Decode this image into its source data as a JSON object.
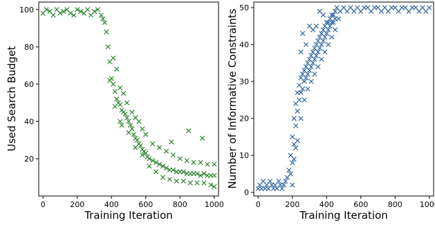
{
  "chart_data": [
    {
      "type": "scatter",
      "title": "",
      "xlabel": "Training Iteration",
      "ylabel": "Used Search Budget",
      "xlim": [
        -25,
        1025
      ],
      "ylim": [
        0,
        104
      ],
      "xticks": [
        0,
        200,
        400,
        600,
        800,
        1000
      ],
      "yticks": [
        20,
        40,
        60,
        80,
        100
      ],
      "marker": "x",
      "color": "#1a7a1a",
      "grid": false,
      "legend": "none",
      "points": [
        [
          0,
          98
        ],
        [
          20,
          100
        ],
        [
          40,
          99
        ],
        [
          60,
          97
        ],
        [
          80,
          100
        ],
        [
          100,
          98
        ],
        [
          120,
          99
        ],
        [
          140,
          100
        ],
        [
          160,
          98
        ],
        [
          180,
          97
        ],
        [
          200,
          100
        ],
        [
          220,
          99
        ],
        [
          240,
          98
        ],
        [
          260,
          100
        ],
        [
          280,
          97
        ],
        [
          300,
          99
        ],
        [
          320,
          100
        ],
        [
          340,
          97
        ],
        [
          350,
          95
        ],
        [
          360,
          93
        ],
        [
          370,
          88
        ],
        [
          380,
          80
        ],
        [
          390,
          72
        ],
        [
          400,
          63
        ],
        [
          410,
          60
        ],
        [
          420,
          56
        ],
        [
          430,
          52
        ],
        [
          440,
          50
        ],
        [
          450,
          49
        ],
        [
          460,
          46
        ],
        [
          470,
          45
        ],
        [
          480,
          44
        ],
        [
          490,
          42
        ],
        [
          500,
          40
        ],
        [
          510,
          38
        ],
        [
          520,
          36
        ],
        [
          530,
          33
        ],
        [
          540,
          31
        ],
        [
          550,
          30
        ],
        [
          560,
          28
        ],
        [
          570,
          27
        ],
        [
          580,
          25
        ],
        [
          590,
          24
        ],
        [
          600,
          23
        ],
        [
          610,
          21
        ],
        [
          620,
          20
        ],
        [
          640,
          19
        ],
        [
          660,
          18
        ],
        [
          680,
          17
        ],
        [
          700,
          16
        ],
        [
          720,
          15
        ],
        [
          740,
          14
        ],
        [
          760,
          14
        ],
        [
          780,
          13
        ],
        [
          800,
          13
        ],
        [
          820,
          13
        ],
        [
          840,
          12
        ],
        [
          860,
          12
        ],
        [
          880,
          12
        ],
        [
          900,
          12
        ],
        [
          920,
          11
        ],
        [
          940,
          12
        ],
        [
          960,
          11
        ],
        [
          980,
          11
        ],
        [
          1000,
          11
        ],
        [
          410,
          74
        ],
        [
          430,
          68
        ],
        [
          450,
          58
        ],
        [
          470,
          55
        ],
        [
          490,
          50
        ],
        [
          520,
          45
        ],
        [
          540,
          42
        ],
        [
          560,
          40
        ],
        [
          580,
          36
        ],
        [
          600,
          33
        ],
        [
          640,
          28
        ],
        [
          680,
          26
        ],
        [
          720,
          24
        ],
        [
          760,
          22
        ],
        [
          800,
          20
        ],
        [
          840,
          19
        ],
        [
          880,
          18
        ],
        [
          920,
          18
        ],
        [
          960,
          17
        ],
        [
          1000,
          17
        ],
        [
          390,
          62
        ],
        [
          420,
          48
        ],
        [
          460,
          38
        ],
        [
          500,
          34
        ],
        [
          540,
          26
        ],
        [
          580,
          22
        ],
        [
          620,
          16
        ],
        [
          660,
          13
        ],
        [
          700,
          10
        ],
        [
          740,
          9
        ],
        [
          780,
          8
        ],
        [
          820,
          8
        ],
        [
          860,
          7
        ],
        [
          900,
          7
        ],
        [
          940,
          7
        ],
        [
          980,
          6
        ],
        [
          1000,
          5
        ],
        [
          850,
          35
        ],
        [
          930,
          31
        ],
        [
          750,
          29
        ],
        [
          450,
          40
        ]
      ]
    },
    {
      "type": "scatter",
      "title": "",
      "xlabel": "Training Iteration",
      "ylabel": "Number of Informative Constraints",
      "xlim": [
        -25,
        1025
      ],
      "ylim": [
        -1,
        51.5
      ],
      "xticks": [
        0,
        200,
        400,
        600,
        800,
        1000
      ],
      "yticks": [
        0,
        10,
        20,
        30,
        40,
        50
      ],
      "marker": "x",
      "color": "#1f5a9e",
      "grid": false,
      "legend": "none",
      "points": [
        [
          0,
          1
        ],
        [
          10,
          2
        ],
        [
          20,
          1
        ],
        [
          30,
          3
        ],
        [
          40,
          1
        ],
        [
          50,
          2
        ],
        [
          60,
          1
        ],
        [
          70,
          3
        ],
        [
          80,
          2
        ],
        [
          90,
          1
        ],
        [
          100,
          2
        ],
        [
          110,
          1
        ],
        [
          120,
          3
        ],
        [
          130,
          2
        ],
        [
          140,
          1
        ],
        [
          150,
          2
        ],
        [
          160,
          3
        ],
        [
          170,
          4
        ],
        [
          180,
          6
        ],
        [
          190,
          10
        ],
        [
          200,
          15
        ],
        [
          210,
          20
        ],
        [
          220,
          24
        ],
        [
          230,
          27
        ],
        [
          240,
          29
        ],
        [
          250,
          31
        ],
        [
          260,
          32
        ],
        [
          270,
          33
        ],
        [
          280,
          34
        ],
        [
          290,
          35
        ],
        [
          300,
          36
        ],
        [
          310,
          37
        ],
        [
          320,
          38
        ],
        [
          330,
          39
        ],
        [
          340,
          40
        ],
        [
          350,
          41
        ],
        [
          360,
          42
        ],
        [
          370,
          43
        ],
        [
          380,
          44
        ],
        [
          390,
          45
        ],
        [
          400,
          46
        ],
        [
          410,
          46
        ],
        [
          420,
          47
        ],
        [
          430,
          48
        ],
        [
          440,
          48
        ],
        [
          450,
          49
        ],
        [
          460,
          50
        ],
        [
          480,
          49
        ],
        [
          500,
          50
        ],
        [
          520,
          49
        ],
        [
          540,
          50
        ],
        [
          560,
          49
        ],
        [
          580,
          50
        ],
        [
          600,
          49
        ],
        [
          620,
          50
        ],
        [
          640,
          50
        ],
        [
          660,
          49
        ],
        [
          680,
          50
        ],
        [
          700,
          50
        ],
        [
          720,
          49
        ],
        [
          740,
          50
        ],
        [
          760,
          49
        ],
        [
          780,
          50
        ],
        [
          800,
          50
        ],
        [
          820,
          49
        ],
        [
          840,
          50
        ],
        [
          860,
          50
        ],
        [
          880,
          49
        ],
        [
          900,
          50
        ],
        [
          920,
          50
        ],
        [
          940,
          49
        ],
        [
          960,
          50
        ],
        [
          980,
          49
        ],
        [
          1000,
          50
        ],
        [
          190,
          5
        ],
        [
          200,
          8
        ],
        [
          210,
          13
        ],
        [
          220,
          18
        ],
        [
          230,
          22
        ],
        [
          240,
          25
        ],
        [
          250,
          27
        ],
        [
          260,
          28
        ],
        [
          270,
          30
        ],
        [
          280,
          31
        ],
        [
          290,
          32
        ],
        [
          300,
          33
        ],
        [
          310,
          34
        ],
        [
          320,
          35
        ],
        [
          330,
          36
        ],
        [
          340,
          37
        ],
        [
          350,
          38
        ],
        [
          360,
          39
        ],
        [
          370,
          40
        ],
        [
          380,
          41
        ],
        [
          390,
          42
        ],
        [
          400,
          43
        ],
        [
          410,
          44
        ],
        [
          420,
          45
        ],
        [
          430,
          46
        ],
        [
          440,
          46
        ],
        [
          450,
          47
        ],
        [
          260,
          43
        ],
        [
          280,
          40
        ],
        [
          300,
          45
        ],
        [
          320,
          44
        ],
        [
          340,
          45
        ],
        [
          360,
          49
        ],
        [
          380,
          48
        ],
        [
          250,
          20
        ],
        [
          270,
          25
        ],
        [
          290,
          28
        ],
        [
          310,
          30
        ],
        [
          330,
          32
        ],
        [
          350,
          34
        ],
        [
          370,
          36
        ],
        [
          390,
          38
        ],
        [
          410,
          40
        ],
        [
          430,
          42
        ],
        [
          450,
          44
        ],
        [
          470,
          47
        ],
        [
          210,
          9
        ],
        [
          230,
          14
        ],
        [
          250,
          38
        ],
        [
          200,
          2
        ],
        [
          220,
          12
        ]
      ]
    }
  ]
}
